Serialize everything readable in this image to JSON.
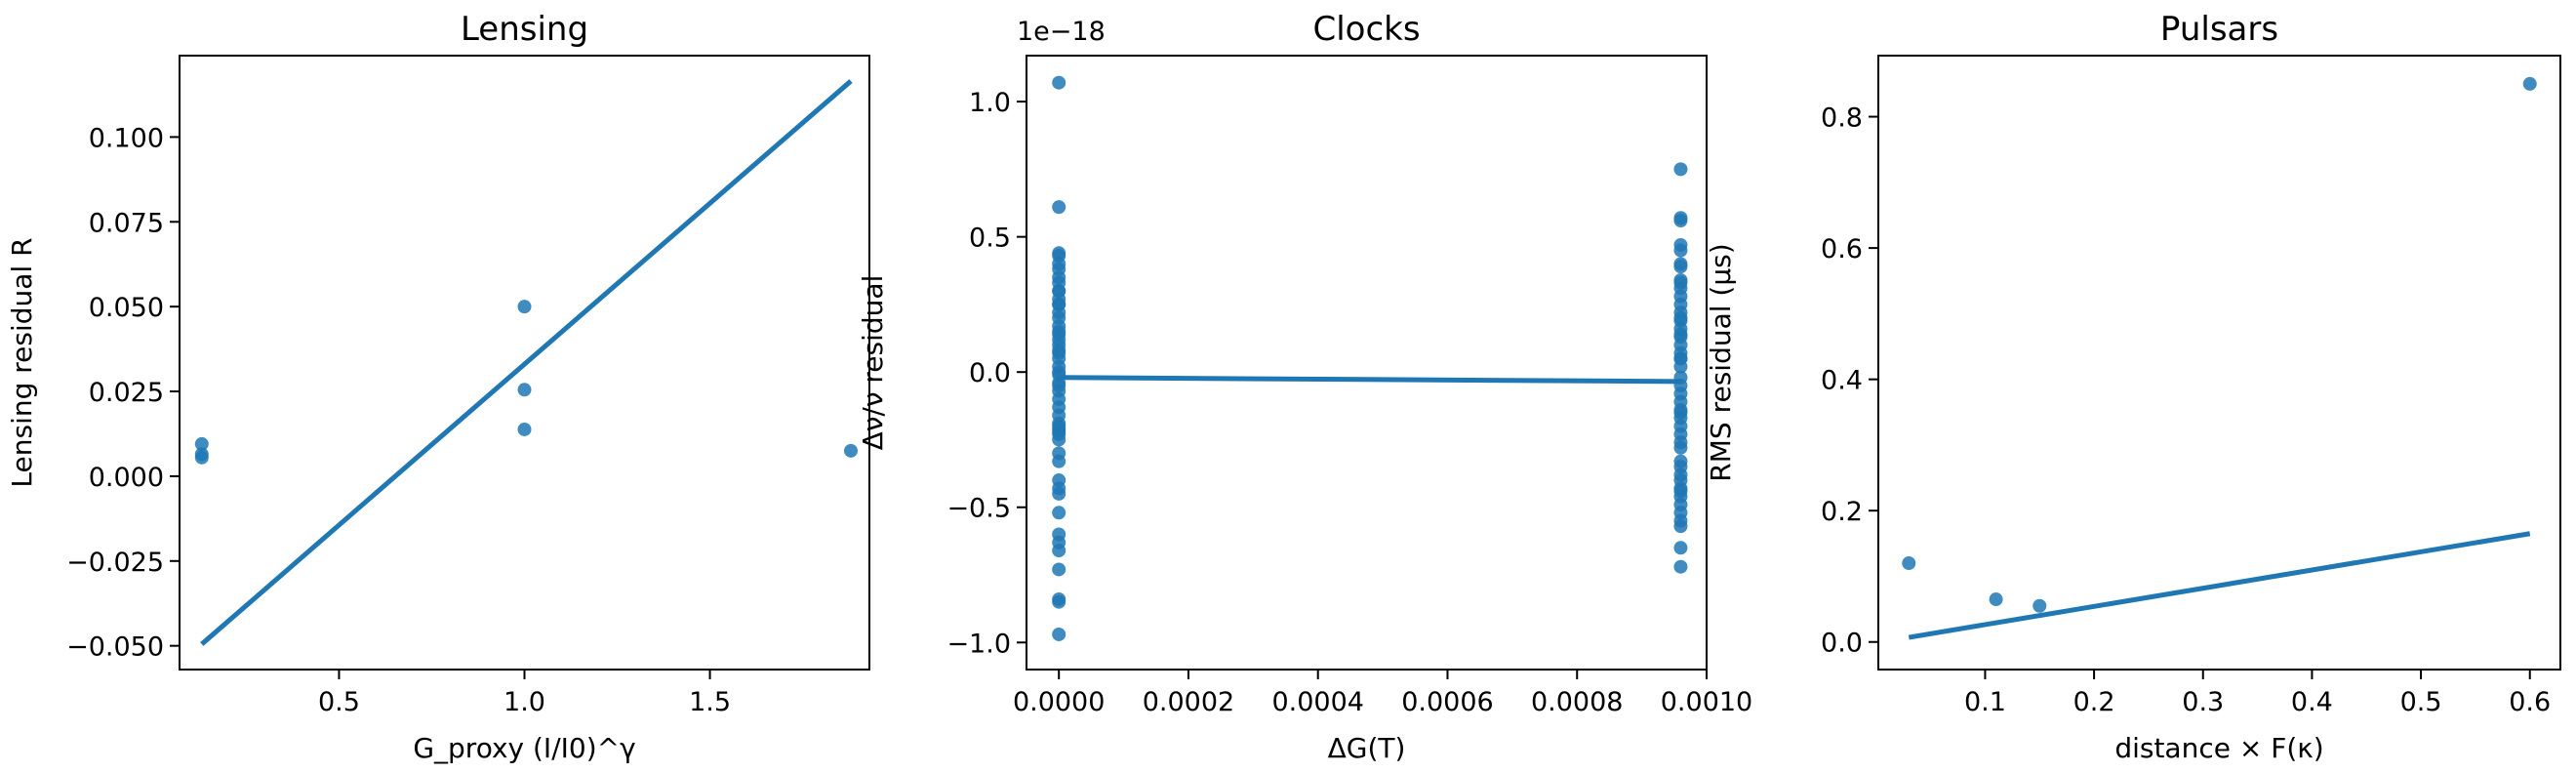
{
  "colors": {
    "series": "#1f77b4",
    "axes": "#000000",
    "background": "#ffffff"
  },
  "chart_data": [
    {
      "type": "scatter",
      "title": "Lensing",
      "xlabel": "G_proxy (I/I0)^γ",
      "ylabel": "Lensing residual R",
      "xlim": [
        0.07,
        1.93
      ],
      "ylim": [
        -0.057,
        0.124
      ],
      "xticks": [
        0.5,
        1.0,
        1.5
      ],
      "xtick_labels": [
        "0.5",
        "1.0",
        "1.5"
      ],
      "yticks": [
        -0.05,
        -0.025,
        0.0,
        0.025,
        0.05,
        0.075,
        0.1
      ],
      "ytick_labels": [
        "−0.050",
        "−0.025",
        "0.000",
        "0.025",
        "0.050",
        "0.075",
        "0.100"
      ],
      "grid": false,
      "points": {
        "x": [
          0.13,
          0.13,
          0.13,
          1.0,
          1.0,
          1.0,
          1.88
        ],
        "y": [
          0.0095,
          0.0065,
          0.0055,
          0.05,
          0.0255,
          0.0138,
          0.0075
        ]
      },
      "fit_line": {
        "x": [
          0.13,
          1.88
        ],
        "y": [
          -0.0495,
          0.1165
        ]
      }
    },
    {
      "type": "scatter",
      "title": "Clocks",
      "xlabel": "ΔG(T)",
      "ylabel": "Δν/ν residual",
      "offset_text": "1e−18",
      "xlim": [
        -5e-05,
        0.001
      ],
      "ylim": [
        -1.1,
        1.17
      ],
      "xticks": [
        0.0,
        0.0002,
        0.0004,
        0.0006,
        0.0008,
        0.001
      ],
      "xtick_labels": [
        "0.0000",
        "0.0002",
        "0.0004",
        "0.0006",
        "0.0008",
        "0.0010"
      ],
      "yticks": [
        -1.0,
        -0.5,
        0.0,
        0.5,
        1.0
      ],
      "ytick_labels": [
        "−1.0",
        "−0.5",
        "0.0",
        "0.5",
        "1.0"
      ],
      "grid": false,
      "points": {
        "x": [
          0,
          0,
          0,
          0,
          0,
          0,
          0,
          0,
          0,
          0,
          0,
          0,
          0,
          0,
          0,
          0,
          0,
          0,
          0,
          0,
          0,
          0,
          0,
          0,
          0,
          0,
          0,
          0,
          0,
          0,
          0,
          0,
          0,
          0,
          0,
          0,
          0,
          0,
          0,
          0,
          0,
          0,
          0,
          0,
          0,
          0,
          0,
          0,
          0,
          0,
          0,
          0.00096,
          0.00096,
          0.00096,
          0.00096,
          0.00096,
          0.00096,
          0.00096,
          0.00096,
          0.00096,
          0.00096,
          0.00096,
          0.00096,
          0.00096,
          0.00096,
          0.00096,
          0.00096,
          0.00096,
          0.00096,
          0.00096,
          0.00096,
          0.00096,
          0.00096,
          0.00096,
          0.00096,
          0.00096,
          0.00096,
          0.00096,
          0.00096,
          0.00096,
          0.00096,
          0.00096,
          0.00096,
          0.00096,
          0.00096,
          0.00096,
          0.00096,
          0.00096,
          0.00096,
          0.00096,
          0.00096,
          0.00096,
          0.00096,
          0.00096,
          0.00096,
          0.00096,
          0.00096,
          0.00096
        ],
        "y": [
          1.07,
          0.61,
          0.44,
          0.43,
          0.38,
          0.35,
          0.33,
          0.3,
          0.27,
          0.25,
          0.22,
          0.2,
          0.17,
          0.14,
          0.1,
          0.07,
          0.05,
          0.02,
          0.0,
          -0.01,
          -0.04,
          -0.07,
          -0.1,
          -0.13,
          -0.16,
          -0.19,
          -0.21,
          -0.23,
          -0.25,
          -0.33,
          -0.4,
          -0.43,
          -0.45,
          -0.6,
          -0.63,
          -0.66,
          -0.73,
          -0.84,
          -0.85,
          -0.97,
          0.3,
          0.15,
          -0.22,
          0.08,
          -0.52,
          0.25,
          -0.3,
          0.12,
          -0.05,
          -0.2,
          0.4,
          0.75,
          0.57,
          0.56,
          0.47,
          0.4,
          0.39,
          0.34,
          0.31,
          0.28,
          0.25,
          0.22,
          0.19,
          0.16,
          0.13,
          0.1,
          0.07,
          0.05,
          0.02,
          -0.02,
          -0.05,
          -0.08,
          -0.11,
          -0.15,
          -0.17,
          -0.2,
          -0.23,
          -0.28,
          -0.33,
          -0.38,
          -0.4,
          -0.43,
          -0.46,
          -0.49,
          -0.52,
          -0.55,
          -0.57,
          -0.65,
          -0.72,
          0.2,
          -0.35,
          0.45,
          -0.14,
          0.33,
          -0.26,
          0.05,
          -0.44,
          0.14
        ]
      },
      "fit_line": {
        "x": [
          0.0,
          0.00096
        ],
        "y": [
          -0.02,
          -0.035
        ]
      }
    },
    {
      "type": "scatter",
      "title": "Pulsars",
      "xlabel": "distance × F(κ)",
      "ylabel": "RMS residual (μs)",
      "xlim": [
        0.002,
        0.628
      ],
      "ylim": [
        -0.042,
        0.893
      ],
      "xticks": [
        0.1,
        0.2,
        0.3,
        0.4,
        0.5,
        0.6
      ],
      "xtick_labels": [
        "0.1",
        "0.2",
        "0.3",
        "0.4",
        "0.5",
        "0.6"
      ],
      "yticks": [
        0.0,
        0.2,
        0.4,
        0.6,
        0.8
      ],
      "ytick_labels": [
        "0.0",
        "0.2",
        "0.4",
        "0.6",
        "0.8"
      ],
      "grid": false,
      "points": {
        "x": [
          0.03,
          0.11,
          0.15,
          0.6
        ],
        "y": [
          0.12,
          0.065,
          0.055,
          0.85
        ]
      },
      "fit_line": {
        "x": [
          0.03,
          0.6
        ],
        "y": [
          0.007,
          0.165
        ]
      }
    }
  ]
}
